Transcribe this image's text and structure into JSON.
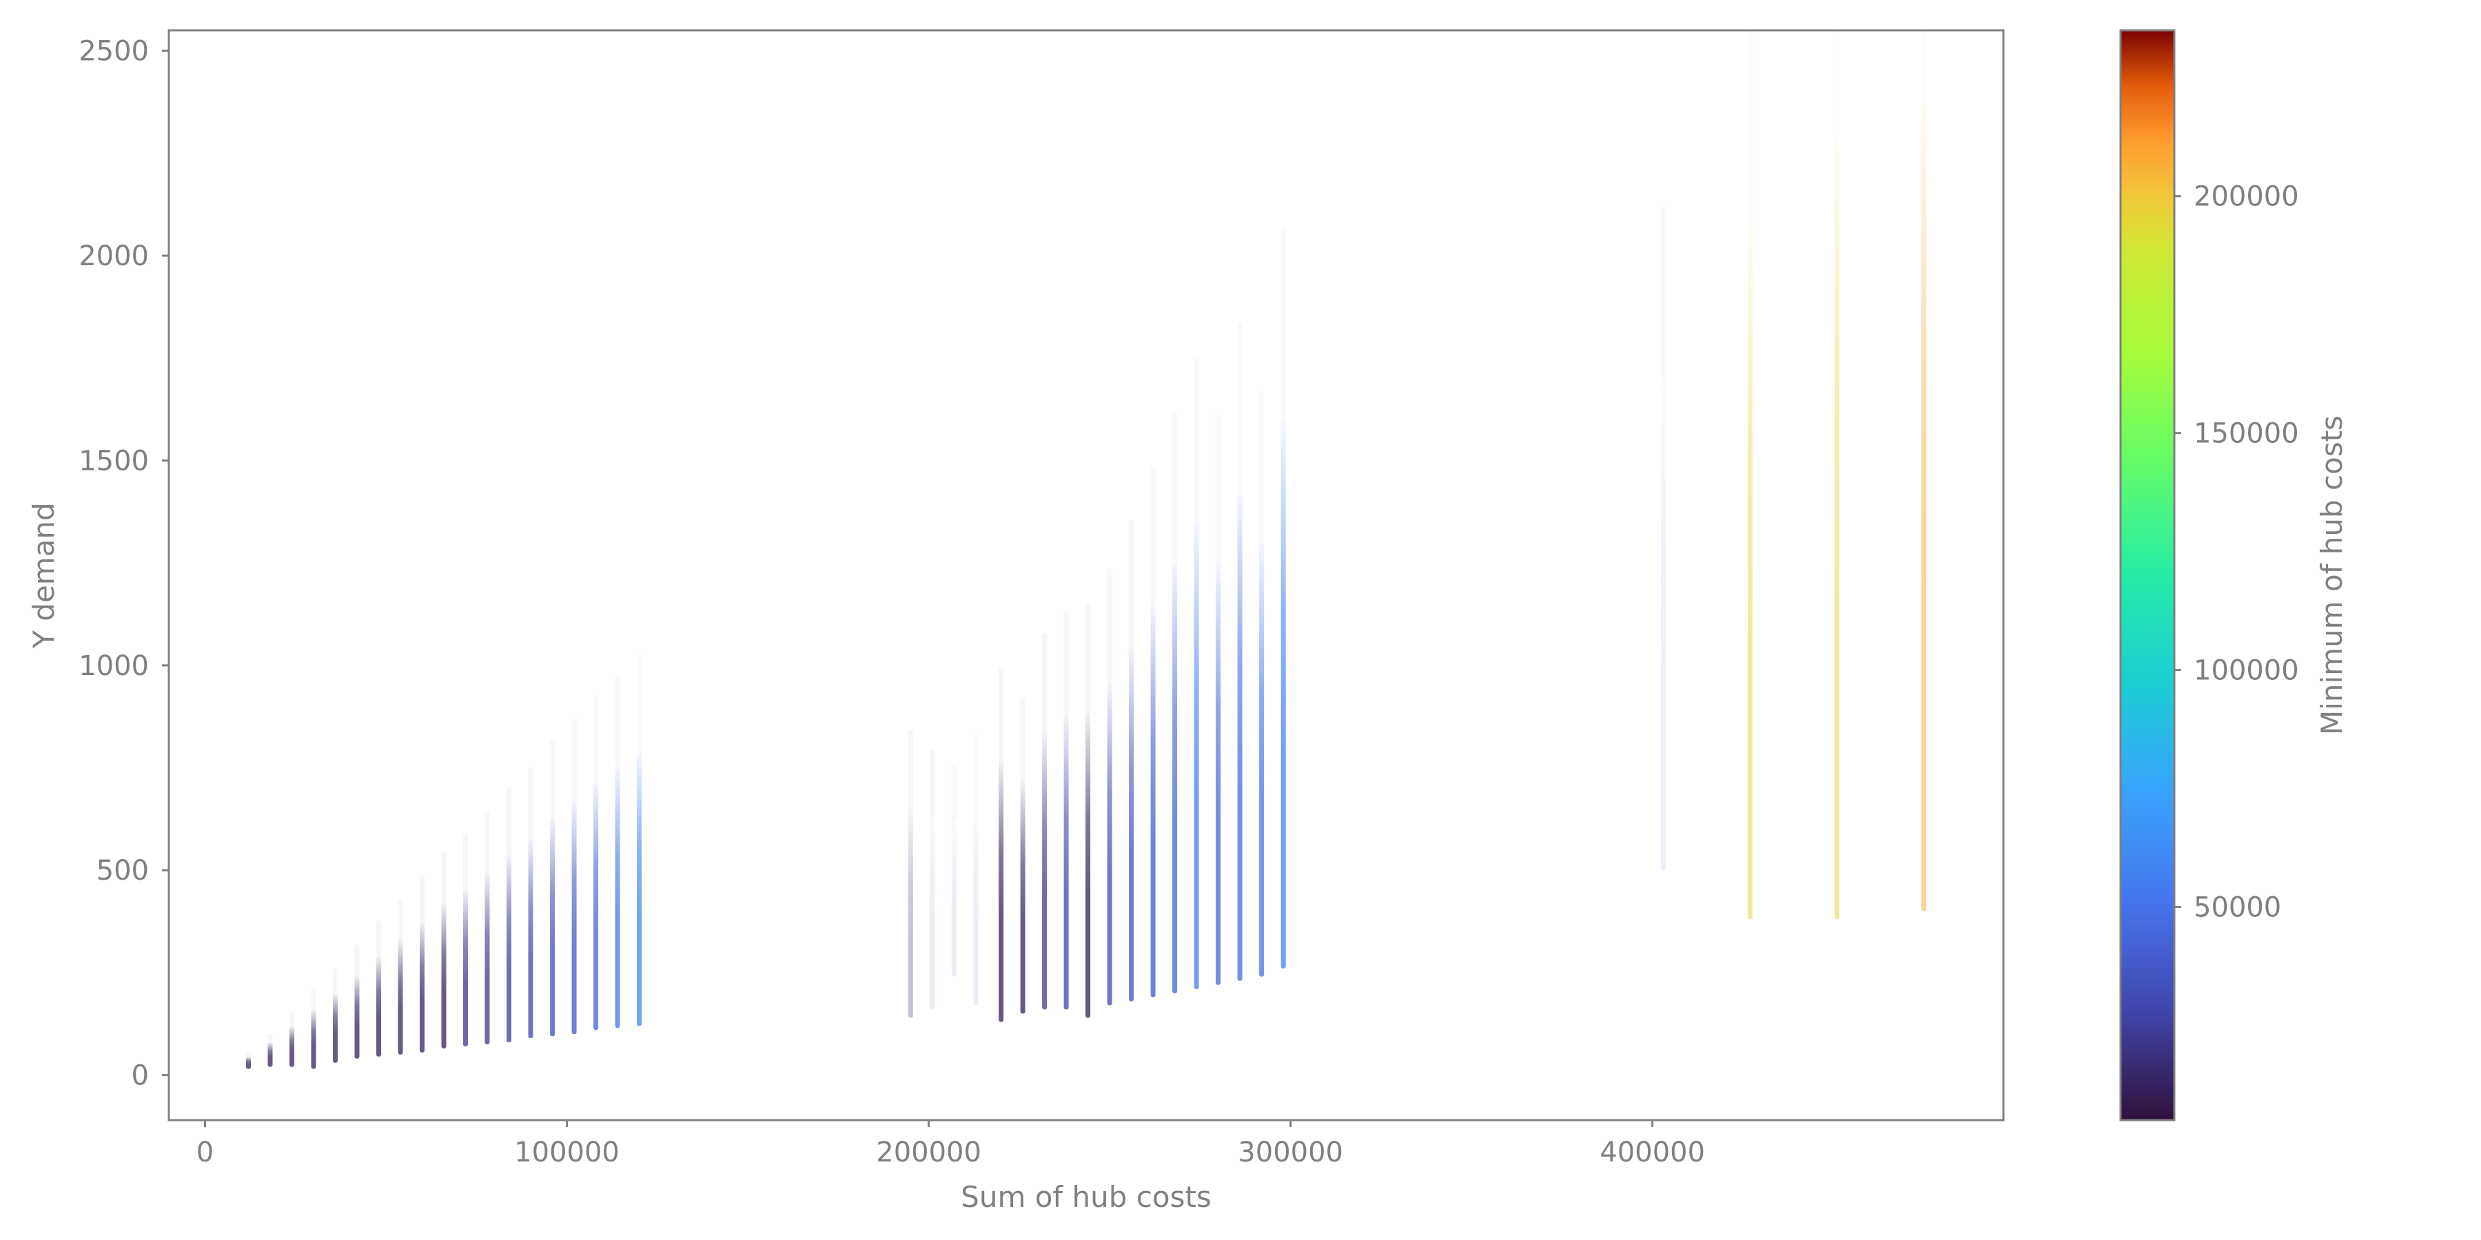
{
  "chart_data": {
    "type": "scatter",
    "title": "",
    "xlabel": "Sum of hub costs",
    "ylabel": "Y demand",
    "xlim": [
      -10000,
      497000
    ],
    "ylim": [
      -110,
      2550
    ],
    "xticks": [
      0,
      100000,
      200000,
      300000,
      400000
    ],
    "xtick_labels": [
      "0",
      "100000",
      "200000",
      "300000",
      "400000"
    ],
    "yticks": [
      0,
      500,
      1000,
      1500,
      2000,
      2500
    ],
    "ytick_labels": [
      "0",
      "500",
      "1000",
      "1500",
      "2000",
      "2500"
    ],
    "grid": false,
    "colorbar": {
      "label": "Minimum of hub costs",
      "colormap": "turbo",
      "range": [
        5000,
        235000
      ],
      "ticks": [
        50000,
        100000,
        150000,
        200000
      ],
      "tick_labels": [
        "50000",
        "100000",
        "150000",
        "200000"
      ]
    },
    "columns": [
      {
        "x": 12000,
        "y_low": 15,
        "y_high": 45,
        "c": 12000,
        "density": "dense"
      },
      {
        "x": 18000,
        "y_low": 20,
        "y_high": 80,
        "c": 12000,
        "density": "dense"
      },
      {
        "x": 24000,
        "y_low": 20,
        "y_high": 120,
        "c": 12000,
        "density": "dense"
      },
      {
        "x": 30000,
        "y_low": 15,
        "y_high": 160,
        "c": 12000,
        "density": "dense"
      },
      {
        "x": 36000,
        "y_low": 30,
        "y_high": 200,
        "c": 12000,
        "density": "dense"
      },
      {
        "x": 42000,
        "y_low": 40,
        "y_high": 245,
        "c": 12000,
        "density": "dense"
      },
      {
        "x": 48000,
        "y_low": 45,
        "y_high": 290,
        "c": 12000,
        "density": "dense"
      },
      {
        "x": 54000,
        "y_low": 50,
        "y_high": 330,
        "c": 12000,
        "density": "dense"
      },
      {
        "x": 60000,
        "y_low": 55,
        "y_high": 375,
        "c": 12000,
        "density": "dense"
      },
      {
        "x": 66000,
        "y_low": 65,
        "y_high": 420,
        "c": 12000,
        "density": "dense"
      },
      {
        "x": 72000,
        "y_low": 70,
        "y_high": 455,
        "c": 22000,
        "density": "dense"
      },
      {
        "x": 78000,
        "y_low": 75,
        "y_high": 495,
        "c": 22000,
        "density": "dense"
      },
      {
        "x": 84000,
        "y_low": 80,
        "y_high": 540,
        "c": 25000,
        "density": "dense"
      },
      {
        "x": 90000,
        "y_low": 90,
        "y_high": 580,
        "c": 28000,
        "density": "dense"
      },
      {
        "x": 96000,
        "y_low": 95,
        "y_high": 630,
        "c": 32000,
        "density": "dense"
      },
      {
        "x": 102000,
        "y_low": 100,
        "y_high": 670,
        "c": 36000,
        "density": "dense"
      },
      {
        "x": 108000,
        "y_low": 110,
        "y_high": 715,
        "c": 42000,
        "density": "dense"
      },
      {
        "x": 114000,
        "y_low": 115,
        "y_high": 755,
        "c": 50000,
        "density": "dense"
      },
      {
        "x": 120000,
        "y_low": 120,
        "y_high": 790,
        "c": 57000,
        "density": "dense"
      },
      {
        "x": 195000,
        "y_low": 140,
        "y_high": 660,
        "c": 12000,
        "density": "sparse"
      },
      {
        "x": 201000,
        "y_low": 160,
        "y_high": 630,
        "c": 22000,
        "density": "faint"
      },
      {
        "x": 207000,
        "y_low": 240,
        "y_high": 620,
        "c": 30000,
        "density": "faint"
      },
      {
        "x": 213000,
        "y_low": 170,
        "y_high": 660,
        "c": 40000,
        "density": "faint"
      },
      {
        "x": 220000,
        "y_low": 130,
        "y_high": 770,
        "c": 10000,
        "density": "dense"
      },
      {
        "x": 226000,
        "y_low": 150,
        "y_high": 720,
        "c": 12000,
        "density": "dense"
      },
      {
        "x": 232000,
        "y_low": 160,
        "y_high": 840,
        "c": 22000,
        "density": "dense"
      },
      {
        "x": 238000,
        "y_low": 160,
        "y_high": 880,
        "c": 28000,
        "density": "dense"
      },
      {
        "x": 244000,
        "y_low": 140,
        "y_high": 890,
        "c": 10000,
        "density": "dense"
      },
      {
        "x": 250000,
        "y_low": 170,
        "y_high": 960,
        "c": 30000,
        "density": "dense"
      },
      {
        "x": 256000,
        "y_low": 180,
        "y_high": 1050,
        "c": 34000,
        "density": "dense"
      },
      {
        "x": 262000,
        "y_low": 190,
        "y_high": 1150,
        "c": 38000,
        "density": "dense"
      },
      {
        "x": 268000,
        "y_low": 200,
        "y_high": 1250,
        "c": 42000,
        "density": "dense"
      },
      {
        "x": 274000,
        "y_low": 210,
        "y_high": 1350,
        "c": 55000,
        "density": "dense"
      },
      {
        "x": 280000,
        "y_low": 220,
        "y_high": 1250,
        "c": 44000,
        "density": "dense"
      },
      {
        "x": 286000,
        "y_low": 230,
        "y_high": 1420,
        "c": 46000,
        "density": "dense"
      },
      {
        "x": 292000,
        "y_low": 240,
        "y_high": 1300,
        "c": 50000,
        "density": "dense"
      },
      {
        "x": 298000,
        "y_low": 260,
        "y_high": 1600,
        "c": 58000,
        "density": "dense"
      },
      {
        "x": 403000,
        "y_low": 500,
        "y_high": 1700,
        "c": 45000,
        "density": "faint"
      },
      {
        "x": 427000,
        "y_low": 380,
        "y_high": 2100,
        "c": 195000,
        "density": "medium"
      },
      {
        "x": 451000,
        "y_low": 380,
        "y_high": 2300,
        "c": 195000,
        "density": "medium"
      },
      {
        "x": 475000,
        "y_low": 400,
        "y_high": 2400,
        "c": 210000,
        "density": "medium"
      }
    ]
  }
}
